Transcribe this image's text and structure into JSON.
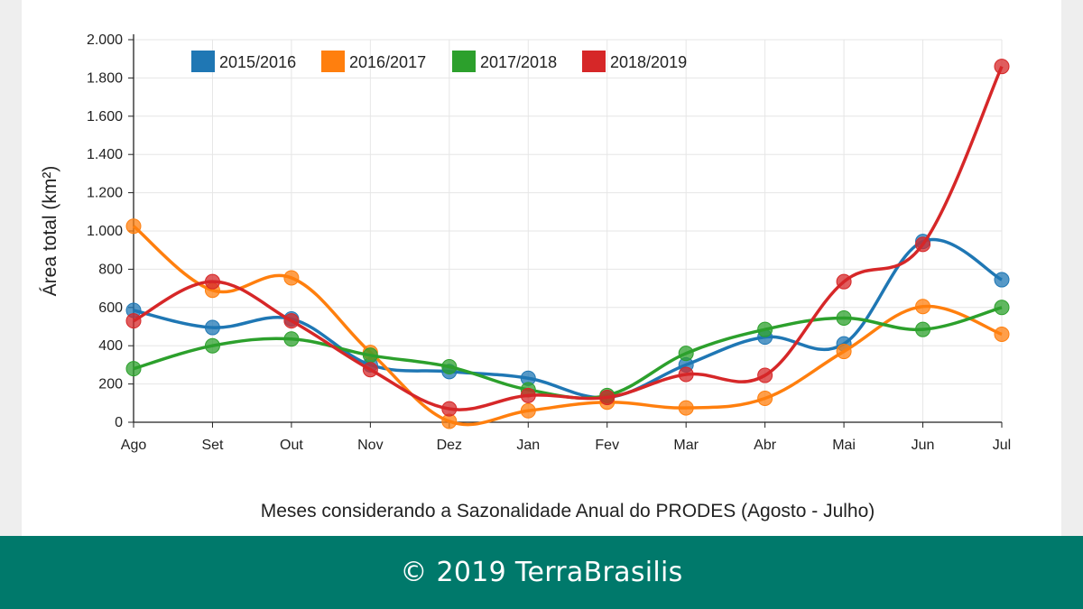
{
  "chart_data": {
    "type": "line",
    "categories": [
      "Ago",
      "Set",
      "Out",
      "Nov",
      "Dez",
      "Jan",
      "Fev",
      "Mar",
      "Abr",
      "Mai",
      "Jun",
      "Jul"
    ],
    "ylabel": "Área total (km²)",
    "xlabel": "Meses considerando a Sazonalidade Anual do PRODES (Agosto - Julho)",
    "ylim": [
      0,
      2000
    ],
    "yticks": [
      0,
      200,
      400,
      600,
      800,
      1000,
      1200,
      1400,
      1600,
      1800,
      2000
    ],
    "ytick_labels": [
      "0",
      "200",
      "400",
      "600",
      "800",
      "1.000",
      "1.200",
      "1.400",
      "1.600",
      "1.800",
      "2.000"
    ],
    "grid": true,
    "legend_position": "top-left",
    "series": [
      {
        "name": "2015/2016",
        "color": "#1f77b4",
        "values": [
          585,
          495,
          540,
          300,
          265,
          230,
          130,
          300,
          445,
          410,
          945,
          745
        ]
      },
      {
        "name": "2016/2017",
        "color": "#ff7f0e",
        "values": [
          1025,
          690,
          755,
          365,
          5,
          60,
          105,
          75,
          125,
          370,
          605,
          460
        ]
      },
      {
        "name": "2017/2018",
        "color": "#2ca02c",
        "values": [
          280,
          400,
          435,
          350,
          290,
          170,
          140,
          360,
          485,
          545,
          485,
          600
        ]
      },
      {
        "name": "2018/2019",
        "color": "#d62728",
        "values": [
          530,
          735,
          530,
          275,
          70,
          140,
          130,
          250,
          245,
          735,
          930,
          1860
        ]
      }
    ]
  },
  "footer": {
    "text": "© 2019 TerraBrasilis"
  }
}
